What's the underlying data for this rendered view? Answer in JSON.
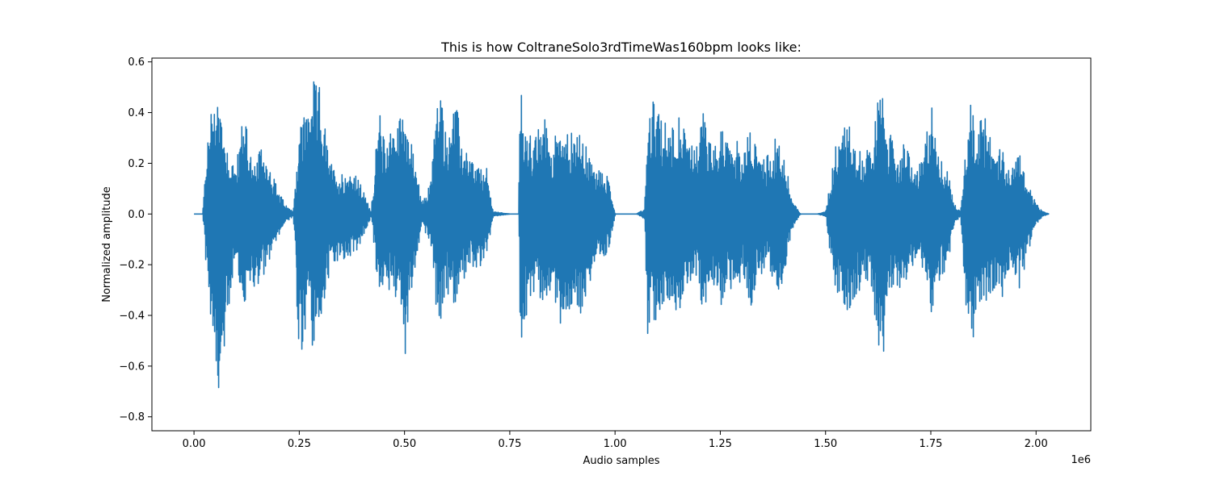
{
  "chart_data": {
    "type": "line",
    "title": "This is how ColtraneSolo3rdTimeWas160bpm looks like:",
    "xlabel": "Audio samples",
    "ylabel": "Normalized amplitude",
    "x_offset_label": "1e6",
    "xlim": [
      -0.1,
      2.13
    ],
    "ylim": [
      -0.855,
      0.615
    ],
    "x_ticks": [
      0.0,
      0.25,
      0.5,
      0.75,
      1.0,
      1.25,
      1.5,
      1.75,
      2.0
    ],
    "x_tick_labels": [
      "0.00",
      "0.25",
      "0.50",
      "0.75",
      "1.00",
      "1.25",
      "1.50",
      "1.75",
      "2.00"
    ],
    "y_ticks": [
      -0.8,
      -0.6,
      -0.4,
      -0.2,
      0.0,
      0.2,
      0.4,
      0.6
    ],
    "y_tick_labels": [
      "−0.8",
      "−0.6",
      "−0.4",
      "−0.2",
      "0.0",
      "0.2",
      "0.4",
      "0.6"
    ],
    "color": "#1f77b4",
    "series": [
      {
        "x": [
          0.0,
          0.02,
          0.03,
          0.05,
          0.06,
          0.08,
          0.1,
          0.12,
          0.14,
          0.16,
          0.18,
          0.2,
          0.22,
          0.235,
          0.25,
          0.27,
          0.28,
          0.3,
          0.32,
          0.34,
          0.36,
          0.38,
          0.4,
          0.42,
          0.44,
          0.45,
          0.47,
          0.49,
          0.5,
          0.51,
          0.525,
          0.54,
          0.56,
          0.58,
          0.6,
          0.62,
          0.64,
          0.66,
          0.68,
          0.695,
          0.71,
          0.75,
          0.77,
          0.775,
          0.79,
          0.81,
          0.83,
          0.85,
          0.87,
          0.89,
          0.91,
          0.93,
          0.95,
          0.97,
          0.985,
          1.0,
          1.05,
          1.07,
          1.075,
          1.09,
          1.11,
          1.13,
          1.15,
          1.17,
          1.19,
          1.21,
          1.23,
          1.25,
          1.27,
          1.29,
          1.3,
          1.32,
          1.34,
          1.36,
          1.38,
          1.4,
          1.42,
          1.44,
          1.46,
          1.48,
          1.5,
          1.52,
          1.535,
          1.55,
          1.57,
          1.59,
          1.61,
          1.63,
          1.65,
          1.67,
          1.69,
          1.71,
          1.73,
          1.75,
          1.77,
          1.79,
          1.805,
          1.82,
          1.84,
          1.86,
          1.88,
          1.9,
          1.92,
          1.94,
          1.96,
          1.98,
          2.0,
          2.015,
          2.03
        ],
        "envelope_upper": [
          0.0,
          0.0,
          0.28,
          0.54,
          0.47,
          0.26,
          0.19,
          0.45,
          0.17,
          0.27,
          0.2,
          0.09,
          0.03,
          0.01,
          0.36,
          0.44,
          0.53,
          0.5,
          0.22,
          0.16,
          0.17,
          0.17,
          0.1,
          0.01,
          0.43,
          0.3,
          0.36,
          0.39,
          0.49,
          0.32,
          0.22,
          0.04,
          0.12,
          0.54,
          0.32,
          0.46,
          0.26,
          0.22,
          0.18,
          0.18,
          0.01,
          0.0,
          0.0,
          0.51,
          0.34,
          0.3,
          0.4,
          0.28,
          0.38,
          0.32,
          0.33,
          0.27,
          0.18,
          0.18,
          0.14,
          0.0,
          0.0,
          0.02,
          0.31,
          0.45,
          0.38,
          0.35,
          0.43,
          0.29,
          0.26,
          0.42,
          0.25,
          0.35,
          0.28,
          0.3,
          0.19,
          0.35,
          0.26,
          0.23,
          0.3,
          0.25,
          0.06,
          0.0,
          0.0,
          0.0,
          0.01,
          0.24,
          0.37,
          0.39,
          0.28,
          0.23,
          0.3,
          0.52,
          0.33,
          0.24,
          0.29,
          0.17,
          0.21,
          0.46,
          0.23,
          0.17,
          0.04,
          0.01,
          0.45,
          0.38,
          0.39,
          0.25,
          0.27,
          0.18,
          0.26,
          0.13,
          0.04,
          0.01,
          0.0
        ],
        "envelope_lower": [
          0.0,
          0.0,
          -0.27,
          -0.59,
          -0.79,
          -0.4,
          -0.21,
          -0.37,
          -0.3,
          -0.26,
          -0.18,
          -0.09,
          -0.03,
          -0.01,
          -0.66,
          -0.38,
          -0.52,
          -0.46,
          -0.24,
          -0.2,
          -0.18,
          -0.17,
          -0.1,
          -0.01,
          -0.37,
          -0.3,
          -0.32,
          -0.36,
          -0.62,
          -0.34,
          -0.24,
          -0.04,
          -0.12,
          -0.47,
          -0.32,
          -0.36,
          -0.26,
          -0.22,
          -0.22,
          -0.16,
          -0.01,
          0.0,
          0.0,
          -0.58,
          -0.39,
          -0.3,
          -0.37,
          -0.3,
          -0.45,
          -0.4,
          -0.42,
          -0.34,
          -0.2,
          -0.2,
          -0.14,
          0.0,
          0.0,
          -0.02,
          -0.53,
          -0.43,
          -0.4,
          -0.36,
          -0.39,
          -0.3,
          -0.26,
          -0.41,
          -0.27,
          -0.37,
          -0.28,
          -0.38,
          -0.2,
          -0.38,
          -0.26,
          -0.23,
          -0.32,
          -0.26,
          -0.06,
          0.0,
          0.0,
          0.0,
          -0.01,
          -0.31,
          -0.33,
          -0.42,
          -0.33,
          -0.27,
          -0.3,
          -0.66,
          -0.34,
          -0.28,
          -0.32,
          -0.2,
          -0.24,
          -0.39,
          -0.27,
          -0.2,
          -0.04,
          -0.01,
          -0.62,
          -0.4,
          -0.35,
          -0.33,
          -0.34,
          -0.2,
          -0.3,
          -0.15,
          -0.04,
          -0.01,
          0.0
        ]
      }
    ]
  }
}
